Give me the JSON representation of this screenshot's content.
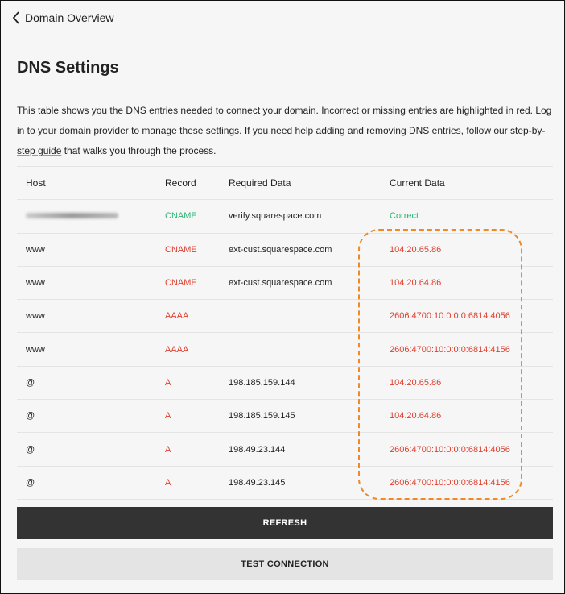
{
  "nav": {
    "back_label": "Domain Overview"
  },
  "page": {
    "title": "DNS Settings",
    "description_before": "This table shows you the DNS entries needed to connect your domain. Incorrect or missing entries are highlighted in red. Log in to your domain provider to manage these settings. If you need help adding and removing DNS entries, follow our ",
    "link_label": "step-by-step guide",
    "description_after": " that walks you through the process."
  },
  "table": {
    "headers": [
      "Host",
      "Record",
      "Required Data",
      "Current Data"
    ],
    "rows": [
      {
        "host": "",
        "record": "CNAME",
        "required": "verify.squarespace.com",
        "current": "Correct",
        "status": "ok"
      },
      {
        "host": "www",
        "record": "CNAME",
        "required": "ext-cust.squarespace.com",
        "current": "104.20.65.86",
        "status": "error"
      },
      {
        "host": "www",
        "record": "CNAME",
        "required": "ext-cust.squarespace.com",
        "current": "104.20.64.86",
        "status": "error"
      },
      {
        "host": "www",
        "record": "AAAA",
        "required": "",
        "current": "2606:4700:10:0:0:0:6814:4056",
        "status": "error"
      },
      {
        "host": "www",
        "record": "AAAA",
        "required": "",
        "current": "2606:4700:10:0:0:0:6814:4156",
        "status": "error"
      },
      {
        "host": "@",
        "record": "A",
        "required": "198.185.159.144",
        "current": "104.20.65.86",
        "status": "error"
      },
      {
        "host": "@",
        "record": "A",
        "required": "198.185.159.145",
        "current": "104.20.64.86",
        "status": "error"
      },
      {
        "host": "@",
        "record": "A",
        "required": "198.49.23.144",
        "current": "2606:4700:10:0:0:0:6814:4056",
        "status": "error"
      },
      {
        "host": "@",
        "record": "A",
        "required": "198.49.23.145",
        "current": "2606:4700:10:0:0:0:6814:4156",
        "status": "error"
      }
    ]
  },
  "buttons": {
    "refresh": "REFRESH",
    "test": "TEST CONNECTION"
  },
  "colors": {
    "error": "#e0402f",
    "ok": "#2bb673",
    "annotation": "#f08a24"
  }
}
